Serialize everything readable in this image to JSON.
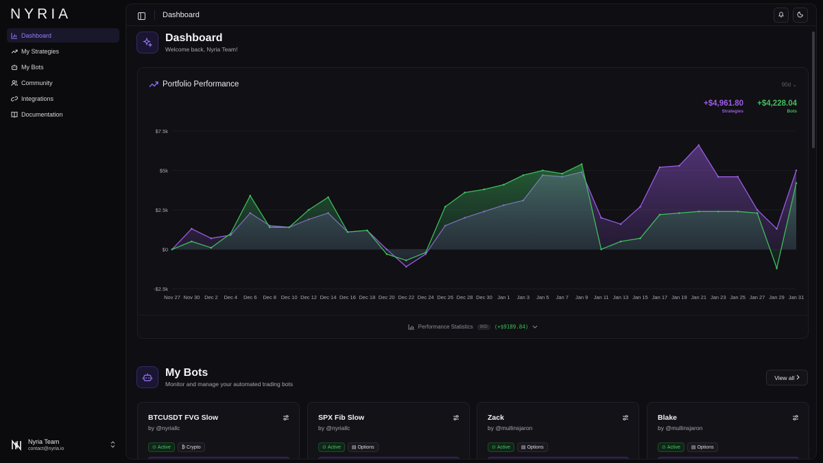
{
  "brand": "NYRIA",
  "sidebar": {
    "items": [
      {
        "label": "Dashboard",
        "icon": "bar-chart-icon",
        "active": true
      },
      {
        "label": "My Strategies",
        "icon": "trending-up-icon"
      },
      {
        "label": "My Bots",
        "icon": "bot-icon"
      },
      {
        "label": "Community",
        "icon": "users-icon"
      },
      {
        "label": "Integrations",
        "icon": "link-icon"
      },
      {
        "label": "Documentation",
        "icon": "book-icon"
      }
    ],
    "user": {
      "name": "Nyria Team",
      "email": "contact@nyria.io"
    }
  },
  "topbar": {
    "breadcrumb": "Dashboard"
  },
  "dashboard": {
    "title": "Dashboard",
    "subtitle": "Welcome back, Nyria Team!"
  },
  "performance": {
    "title": "Portfolio Performance",
    "range": "90d",
    "strategies_value": "+$4,961.80",
    "strategies_label": "Strategies",
    "bots_value": "+$4,228.04",
    "bots_label": "Bots",
    "footer_label": "Performance Statistics",
    "footer_pill": "90D",
    "footer_value": "(+$9189.84)"
  },
  "chart_data": {
    "type": "area",
    "ytick_labels": [
      "$7.5k",
      "$5k",
      "$2.5k",
      "$0",
      "-$2.5k"
    ],
    "yticks": [
      7500,
      5000,
      2500,
      0,
      -2500
    ],
    "ylim": [
      -2500,
      7500
    ],
    "xtick_labels": [
      "Nov 27",
      "Nov 30",
      "Dec 2",
      "Dec 4",
      "Dec 6",
      "Dec 8",
      "Dec 10",
      "Dec 12",
      "Dec 14",
      "Dec 16",
      "Dec 18",
      "Dec 20",
      "Dec 22",
      "Dec 24",
      "Dec 26",
      "Dec 28",
      "Dec 30",
      "Jan 1",
      "Jan 3",
      "Jan 5",
      "Jan 7",
      "Jan 9",
      "Jan 11",
      "Jan 13",
      "Jan 15",
      "Jan 17",
      "Jan 19",
      "Jan 21",
      "Jan 23",
      "Jan 25",
      "Jan 27",
      "Jan 29",
      "Jan 31"
    ],
    "x": [
      "Nov 27",
      "Nov 30",
      "Dec 2",
      "Dec 4",
      "Dec 6",
      "Dec 8",
      "Dec 10",
      "Dec 12",
      "Dec 14",
      "Dec 16",
      "Dec 18",
      "Dec 20",
      "Dec 22",
      "Dec 24",
      "Dec 26",
      "Dec 28",
      "Dec 30",
      "Jan 1",
      "Jan 3",
      "Jan 5",
      "Jan 7",
      "Jan 9",
      "Jan 11",
      "Jan 13",
      "Jan 15",
      "Jan 17",
      "Jan 19",
      "Jan 21",
      "Jan 23",
      "Jan 25",
      "Jan 27",
      "Jan 29",
      "Jan 31"
    ],
    "series": [
      {
        "name": "Strategies",
        "color": "#9b5de5",
        "values": [
          0,
          1300,
          700,
          900,
          2300,
          1500,
          1400,
          1900,
          2300,
          1100,
          1200,
          0,
          -1100,
          -300,
          1500,
          2000,
          2400,
          2800,
          3100,
          4700,
          4600,
          4900,
          2000,
          1600,
          2700,
          5200,
          5300,
          6600,
          4600,
          4600,
          2500,
          1300,
          5000
        ]
      },
      {
        "name": "Bots",
        "color": "#3fbf5c",
        "values": [
          0,
          500,
          100,
          1000,
          3400,
          1400,
          1400,
          2500,
          3300,
          1100,
          1200,
          -300,
          -700,
          -200,
          2700,
          3600,
          3800,
          4100,
          4700,
          5000,
          4800,
          5400,
          0,
          500,
          700,
          2200,
          2300,
          2400,
          2400,
          2400,
          2300,
          -1200,
          4200
        ]
      }
    ],
    "grid": true
  },
  "bots_section": {
    "title": "My Bots",
    "subtitle": "Monitor and manage your automated trading bots",
    "view_all": "View all",
    "bots": [
      {
        "name": "BTCUSDT FVG Slow",
        "author": "by @nyriallc",
        "status": "Active",
        "type": "Crypto"
      },
      {
        "name": "SPX Fib Slow",
        "author": "by @nyriallc",
        "status": "Active",
        "type": "Options"
      },
      {
        "name": "Zack",
        "author": "by @mullinsjaron",
        "status": "Active",
        "type": "Options"
      },
      {
        "name": "Blake",
        "author": "by @mullinsjaron",
        "status": "Active",
        "type": "Options"
      }
    ]
  },
  "colors": {
    "accent": "#9b7cff",
    "strategies": "#9b5de5",
    "bots": "#3fbf5c"
  }
}
